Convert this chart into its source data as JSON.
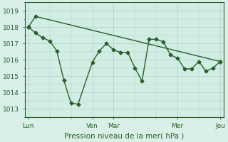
{
  "background_color": "#d8f0e8",
  "plot_bg_color": "#d0eee4",
  "grid_color": "#b8ccc4",
  "line_color": "#2a5e2a",
  "xlabel": "Pression niveau de la mer( hPa )",
  "ylim": [
    1012.5,
    1019.5
  ],
  "yticks": [
    1013,
    1014,
    1015,
    1016,
    1017,
    1018,
    1019
  ],
  "xtick_labels": [
    "Lun",
    "",
    "",
    "Ven",
    "Mar",
    "",
    "",
    "Mer",
    "",
    "Jeu"
  ],
  "xtick_positions": [
    0,
    3,
    6,
    9,
    12,
    15,
    18,
    21,
    24,
    27
  ],
  "xlim": [
    -0.5,
    27.5
  ],
  "main_x": [
    0,
    1,
    2,
    3,
    4,
    5,
    6,
    7,
    9,
    10,
    11,
    12,
    13,
    14,
    15,
    16,
    17,
    18,
    19,
    20,
    21,
    22,
    23,
    24,
    25,
    26,
    27
  ],
  "main_y": [
    1018.0,
    1017.65,
    1017.35,
    1017.15,
    1016.55,
    1014.75,
    1013.35,
    1013.3,
    1015.85,
    1016.55,
    1017.0,
    1016.6,
    1016.45,
    1016.45,
    1015.5,
    1014.7,
    1017.25,
    1017.25,
    1017.1,
    1016.3,
    1016.1,
    1015.45,
    1015.45,
    1015.9,
    1015.3,
    1015.5,
    1015.9
  ],
  "trend_x": [
    0,
    1,
    27
  ],
  "trend_y": [
    1018.0,
    1018.65,
    1015.9
  ],
  "marker_size": 2.5,
  "line_width": 1.0,
  "tick_fontsize": 6.5,
  "label_fontsize": 7.5
}
